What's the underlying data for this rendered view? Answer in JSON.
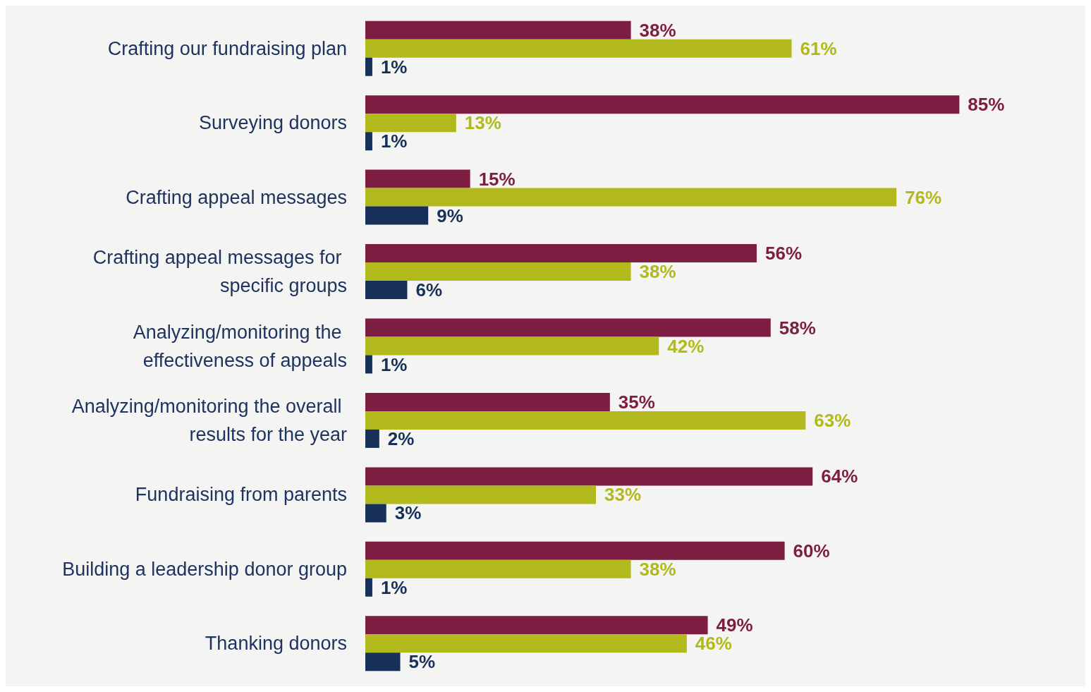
{
  "chart_data": {
    "type": "bar",
    "orientation": "horizontal",
    "categories": [
      "Crafting our fundraising plan",
      "Surveying donors",
      "Crafting appeal messages",
      "Crafting appeal messages for specific groups",
      "Analyzing/monitoring the effectiveness of appeals",
      "Analyzing/monitoring the overall results for the year",
      "Fundraising from parents",
      "Building a leadership donor group",
      "Thanking donors"
    ],
    "series": [
      {
        "color": "#7d1d42",
        "values": [
          38,
          85,
          15,
          56,
          58,
          35,
          64,
          60,
          49
        ],
        "value_labels": [
          "38%",
          "85%",
          "15%",
          "56%",
          "58%",
          "35%",
          "64%",
          "60%",
          "49%"
        ]
      },
      {
        "color": "#b1b91c",
        "values": [
          61,
          13,
          76,
          38,
          42,
          63,
          33,
          38,
          46
        ],
        "value_labels": [
          "61%",
          "13%",
          "76%",
          "38%",
          "42%",
          "63%",
          "33%",
          "38%",
          "46%"
        ]
      },
      {
        "color": "#16305a",
        "values": [
          1,
          1,
          9,
          6,
          1,
          2,
          3,
          1,
          5
        ],
        "value_labels": [
          "1%",
          "1%",
          "9%",
          "6%",
          "1%",
          "2%",
          "3%",
          "1%",
          "5%"
        ]
      }
    ]
  }
}
